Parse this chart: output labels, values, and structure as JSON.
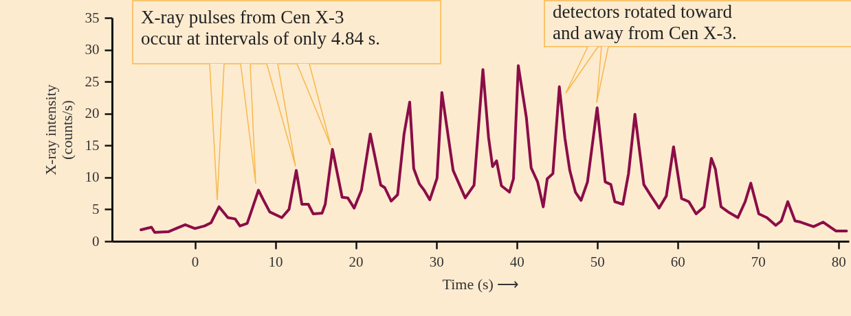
{
  "chart_data": {
    "type": "line",
    "xlabel": "Time (s) ⟶",
    "ylabel": "X-ray intensity (counts/s)",
    "annotations": [
      "X-ray pulses from Cen X-3 occur at intervals of only 4.84 s.",
      "detectors rotated toward and away from Cen X-3."
    ],
    "xlim": [
      -10.3,
      81.3
    ],
    "ylim": [
      0,
      35
    ],
    "xticks": [
      0,
      10,
      20,
      30,
      40,
      50,
      60,
      70,
      80
    ],
    "yticks": [
      0,
      5,
      10,
      15,
      20,
      25,
      30,
      35
    ],
    "grid": false,
    "marker": "none",
    "line_style": "solid",
    "series": [
      {
        "color": "#8b0d47",
        "x": [
          -6.7,
          -5.4,
          -5.0,
          -3.3,
          -1.2,
          0.0,
          1.2,
          2.0,
          3.0,
          4.1,
          5.0,
          5.6,
          6.5,
          7.1,
          7.9,
          8.5,
          9.3,
          10.8,
          11.7,
          12.6,
          13.3,
          14.1,
          14.7,
          15.8,
          16.2,
          17.1,
          18.3,
          19.0,
          19.8,
          20.7,
          21.8,
          23.1,
          23.6,
          24.4,
          25.2,
          26.0,
          26.7,
          27.2,
          27.9,
          28.5,
          29.2,
          30.1,
          30.7,
          32.1,
          33.6,
          34.7,
          35.8,
          36.5,
          37.0,
          37.5,
          38.1,
          39.1,
          39.6,
          40.2,
          41.2,
          41.8,
          42.6,
          43.3,
          43.8,
          44.5,
          45.3,
          46.0,
          46.6,
          47.3,
          48.0,
          48.8,
          50.0,
          51.0,
          51.7,
          52.2,
          53.2,
          53.9,
          54.7,
          55.8,
          56.7,
          57.7,
          58.6,
          59.5,
          60.5,
          61.4,
          62.3,
          63.3,
          64.2,
          64.7,
          65.4,
          66.4,
          67.5,
          68.4,
          69.1,
          70.1,
          71.1,
          72.2,
          72.9,
          73.7,
          74.6,
          75.3,
          76.9,
          78.1,
          79.7,
          81.0
        ],
        "values": [
          1.8,
          2.2,
          1.4,
          1.5,
          2.6,
          2.0,
          2.4,
          2.9,
          5.4,
          3.7,
          3.5,
          2.4,
          2.8,
          5.0,
          8.0,
          6.5,
          4.6,
          3.7,
          5.0,
          11.1,
          5.8,
          5.8,
          4.3,
          4.4,
          5.8,
          14.4,
          6.9,
          6.8,
          5.2,
          8.0,
          16.8,
          8.8,
          8.4,
          6.3,
          7.3,
          16.8,
          21.8,
          11.4,
          9.0,
          8.0,
          6.5,
          9.9,
          23.3,
          11.1,
          6.8,
          8.8,
          26.9,
          16.3,
          11.7,
          12.6,
          8.7,
          7.7,
          9.8,
          27.5,
          19.4,
          11.5,
          9.3,
          5.4,
          9.8,
          10.6,
          24.2,
          16.1,
          11.1,
          7.7,
          6.4,
          9.3,
          20.9,
          9.3,
          8.9,
          6.2,
          5.8,
          10.6,
          19.9,
          8.9,
          7.1,
          5.2,
          7.1,
          14.8,
          6.7,
          6.2,
          4.3,
          5.4,
          13.0,
          11.3,
          5.4,
          4.5,
          3.7,
          6.2,
          9.1,
          4.3,
          3.7,
          2.5,
          3.2,
          6.2,
          3.2,
          3.0,
          2.3,
          3.0,
          1.6,
          1.6
        ]
      }
    ]
  }
}
